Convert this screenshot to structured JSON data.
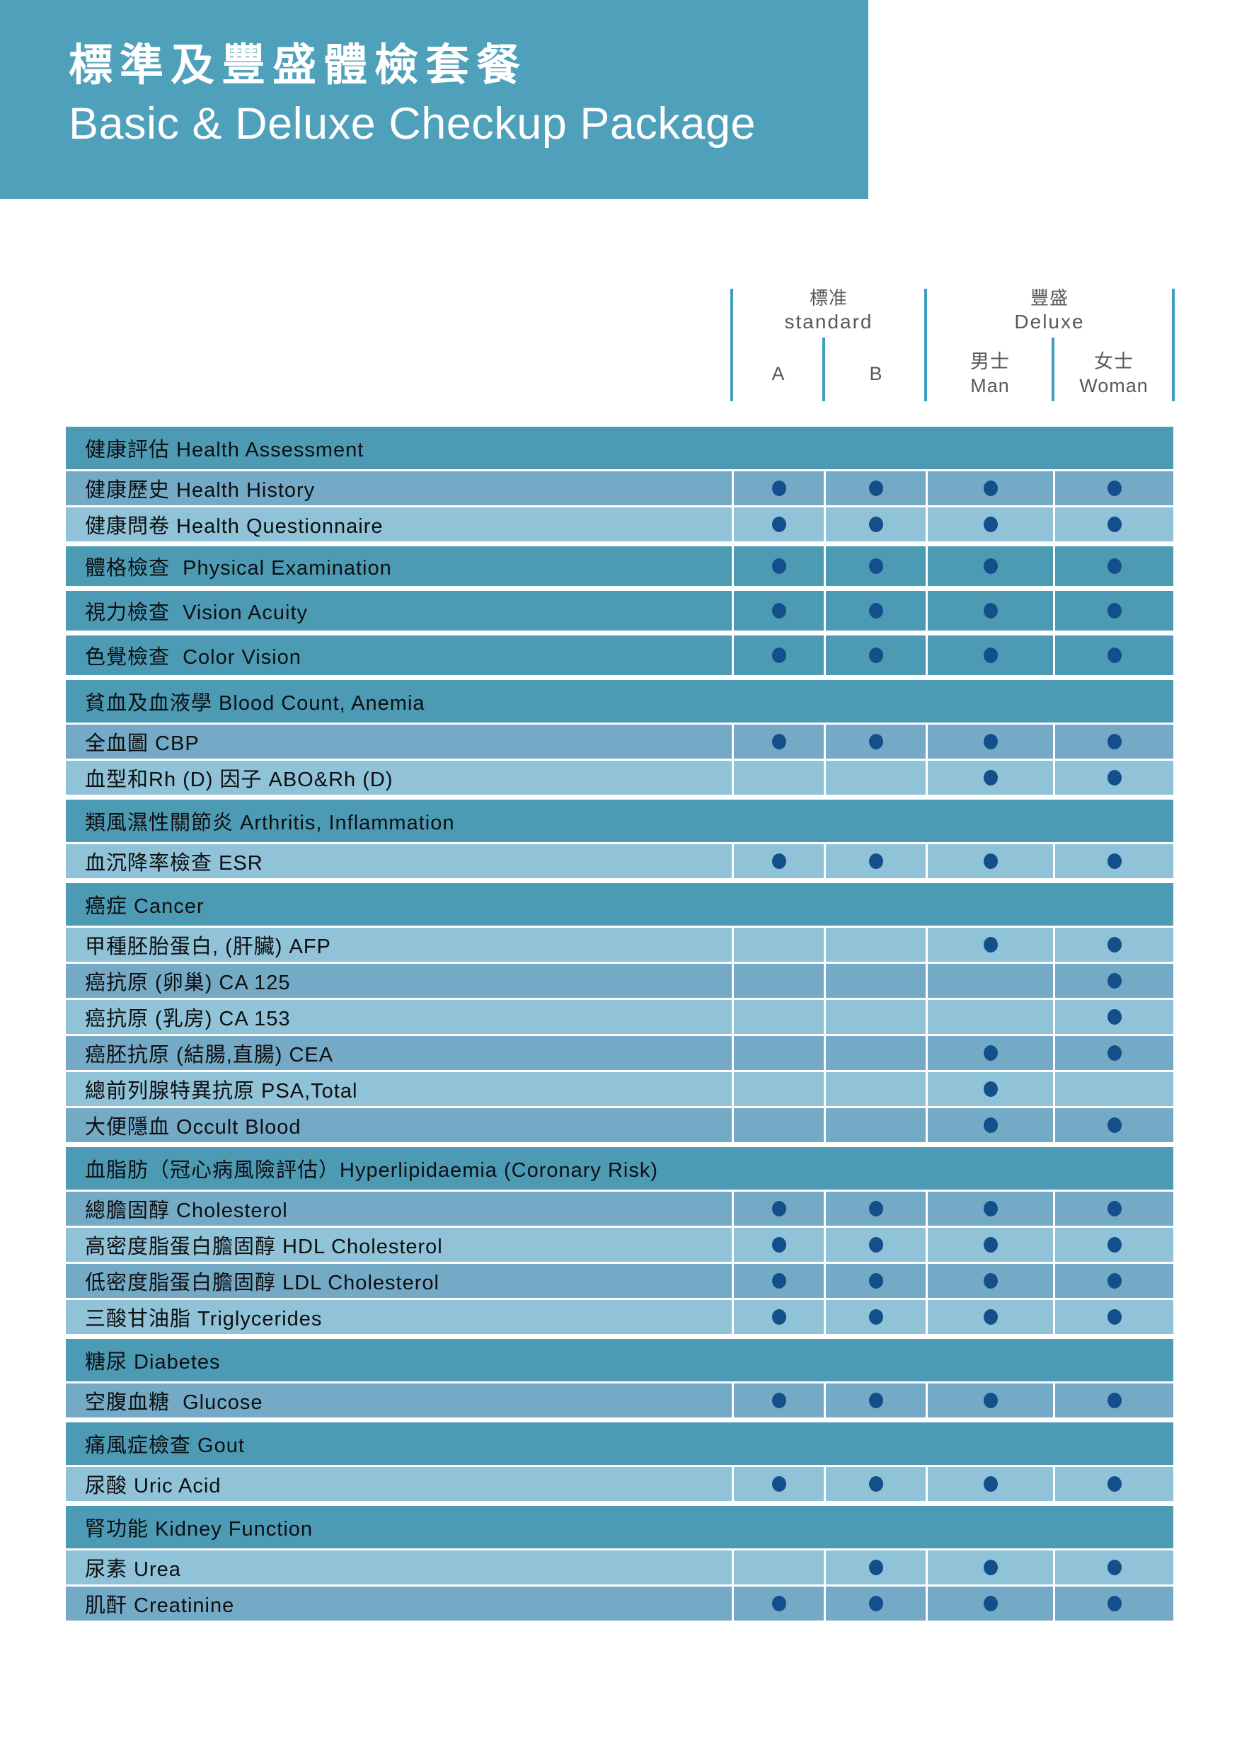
{
  "banner": {
    "title_zh": "標準及豐盛體檢套餐",
    "title_en": "Basic & Deluxe Checkup Package"
  },
  "columns": {
    "groups": [
      {
        "zh": "標准",
        "en": "standard"
      },
      {
        "zh": "豐盛",
        "en": "Deluxe"
      }
    ],
    "subs": [
      {
        "zh": "",
        "en": "A"
      },
      {
        "zh": "",
        "en": "B"
      },
      {
        "zh": "男士",
        "en": "Man"
      },
      {
        "zh": "女士",
        "en": "Woman"
      }
    ]
  },
  "colors": {
    "banner_bg": "#4FA0BA",
    "category_row_bg": "#4D9AB5",
    "item_row_medium_bg": "#74AAC6",
    "item_row_light_bg": "#90C2D8",
    "dot": "#134F8B",
    "header_line": "#3C9DC0",
    "header_text": "#58595C",
    "row_text": "#0D0F10"
  },
  "table": {
    "dot_columns_order": [
      "A",
      "B",
      "Man",
      "Woman"
    ],
    "groups": [
      {
        "header": "健康評估 Health Assessment",
        "items": [
          {
            "label": "健康歷史 Health History",
            "shade": "med",
            "dots": [
              1,
              1,
              1,
              1
            ]
          },
          {
            "label": "健康問卷 Health Questionnaire",
            "shade": "light",
            "dots": [
              1,
              1,
              1,
              1
            ]
          }
        ]
      },
      {
        "header": "體格檢查  Physical Examination",
        "header_dots": [
          1,
          1,
          1,
          1
        ],
        "items": []
      },
      {
        "header": "視力檢查  Vision Acuity",
        "header_dots": [
          1,
          1,
          1,
          1
        ],
        "items": []
      },
      {
        "header": "色覺檢查  Color Vision",
        "header_dots": [
          1,
          1,
          1,
          1
        ],
        "items": []
      },
      {
        "header": "貧血及血液學 Blood Count, Anemia",
        "items": [
          {
            "label": "全血圖 CBP",
            "shade": "med",
            "dots": [
              1,
              1,
              1,
              1
            ]
          },
          {
            "label": "血型和Rh (D) 因子 ABO&Rh (D)",
            "shade": "light",
            "dots": [
              0,
              0,
              1,
              1
            ]
          }
        ]
      },
      {
        "header": "類風濕性關節炎 Arthritis, Inflammation",
        "items": [
          {
            "label": "血沉降率檢查 ESR",
            "shade": "light",
            "dots": [
              1,
              1,
              1,
              1
            ]
          }
        ]
      },
      {
        "header": "癌症 Cancer",
        "items": [
          {
            "label": "甲種胚胎蛋白, (肝臟) AFP",
            "shade": "light",
            "dots": [
              0,
              0,
              1,
              1
            ]
          },
          {
            "label": "癌抗原 (卵巢) CA 125",
            "shade": "med",
            "dots": [
              0,
              0,
              0,
              1
            ]
          },
          {
            "label": "癌抗原 (乳房) CA 153",
            "shade": "light",
            "dots": [
              0,
              0,
              0,
              1
            ]
          },
          {
            "label": "癌胚抗原 (結腸,直腸) CEA",
            "shade": "med",
            "dots": [
              0,
              0,
              1,
              1
            ]
          },
          {
            "label": "總前列腺特異抗原 PSA,Total",
            "shade": "light",
            "dots": [
              0,
              0,
              1,
              0
            ]
          },
          {
            "label": "大便隱血 Occult Blood",
            "shade": "med",
            "dots": [
              0,
              0,
              1,
              1
            ]
          }
        ]
      },
      {
        "header": "血脂肪（冠心病風險評估）Hyperlipidaemia (Coronary Risk)",
        "items": [
          {
            "label": "總膽固醇 Cholesterol",
            "shade": "med",
            "dots": [
              1,
              1,
              1,
              1
            ]
          },
          {
            "label": "高密度脂蛋白膽固醇 HDL Cholesterol",
            "shade": "light",
            "dots": [
              1,
              1,
              1,
              1
            ]
          },
          {
            "label": "低密度脂蛋白膽固醇 LDL Cholesterol",
            "shade": "med",
            "dots": [
              1,
              1,
              1,
              1
            ]
          },
          {
            "label": "三酸甘油脂 Triglycerides",
            "shade": "light",
            "dots": [
              1,
              1,
              1,
              1
            ]
          }
        ]
      },
      {
        "header": "糖尿 Diabetes",
        "items": [
          {
            "label": "空腹血糖  Glucose",
            "shade": "med",
            "dots": [
              1,
              1,
              1,
              1
            ]
          }
        ]
      },
      {
        "header": "痛風症檢查 Gout",
        "items": [
          {
            "label": "尿酸 Uric Acid",
            "shade": "light",
            "dots": [
              1,
              1,
              1,
              1
            ]
          }
        ]
      },
      {
        "header": "腎功能 Kidney Function",
        "items": [
          {
            "label": "尿素 Urea",
            "shade": "light",
            "dots": [
              0,
              1,
              1,
              1
            ]
          },
          {
            "label": "肌酐 Creatinine",
            "shade": "med",
            "dots": [
              1,
              1,
              1,
              1
            ]
          }
        ]
      }
    ]
  }
}
